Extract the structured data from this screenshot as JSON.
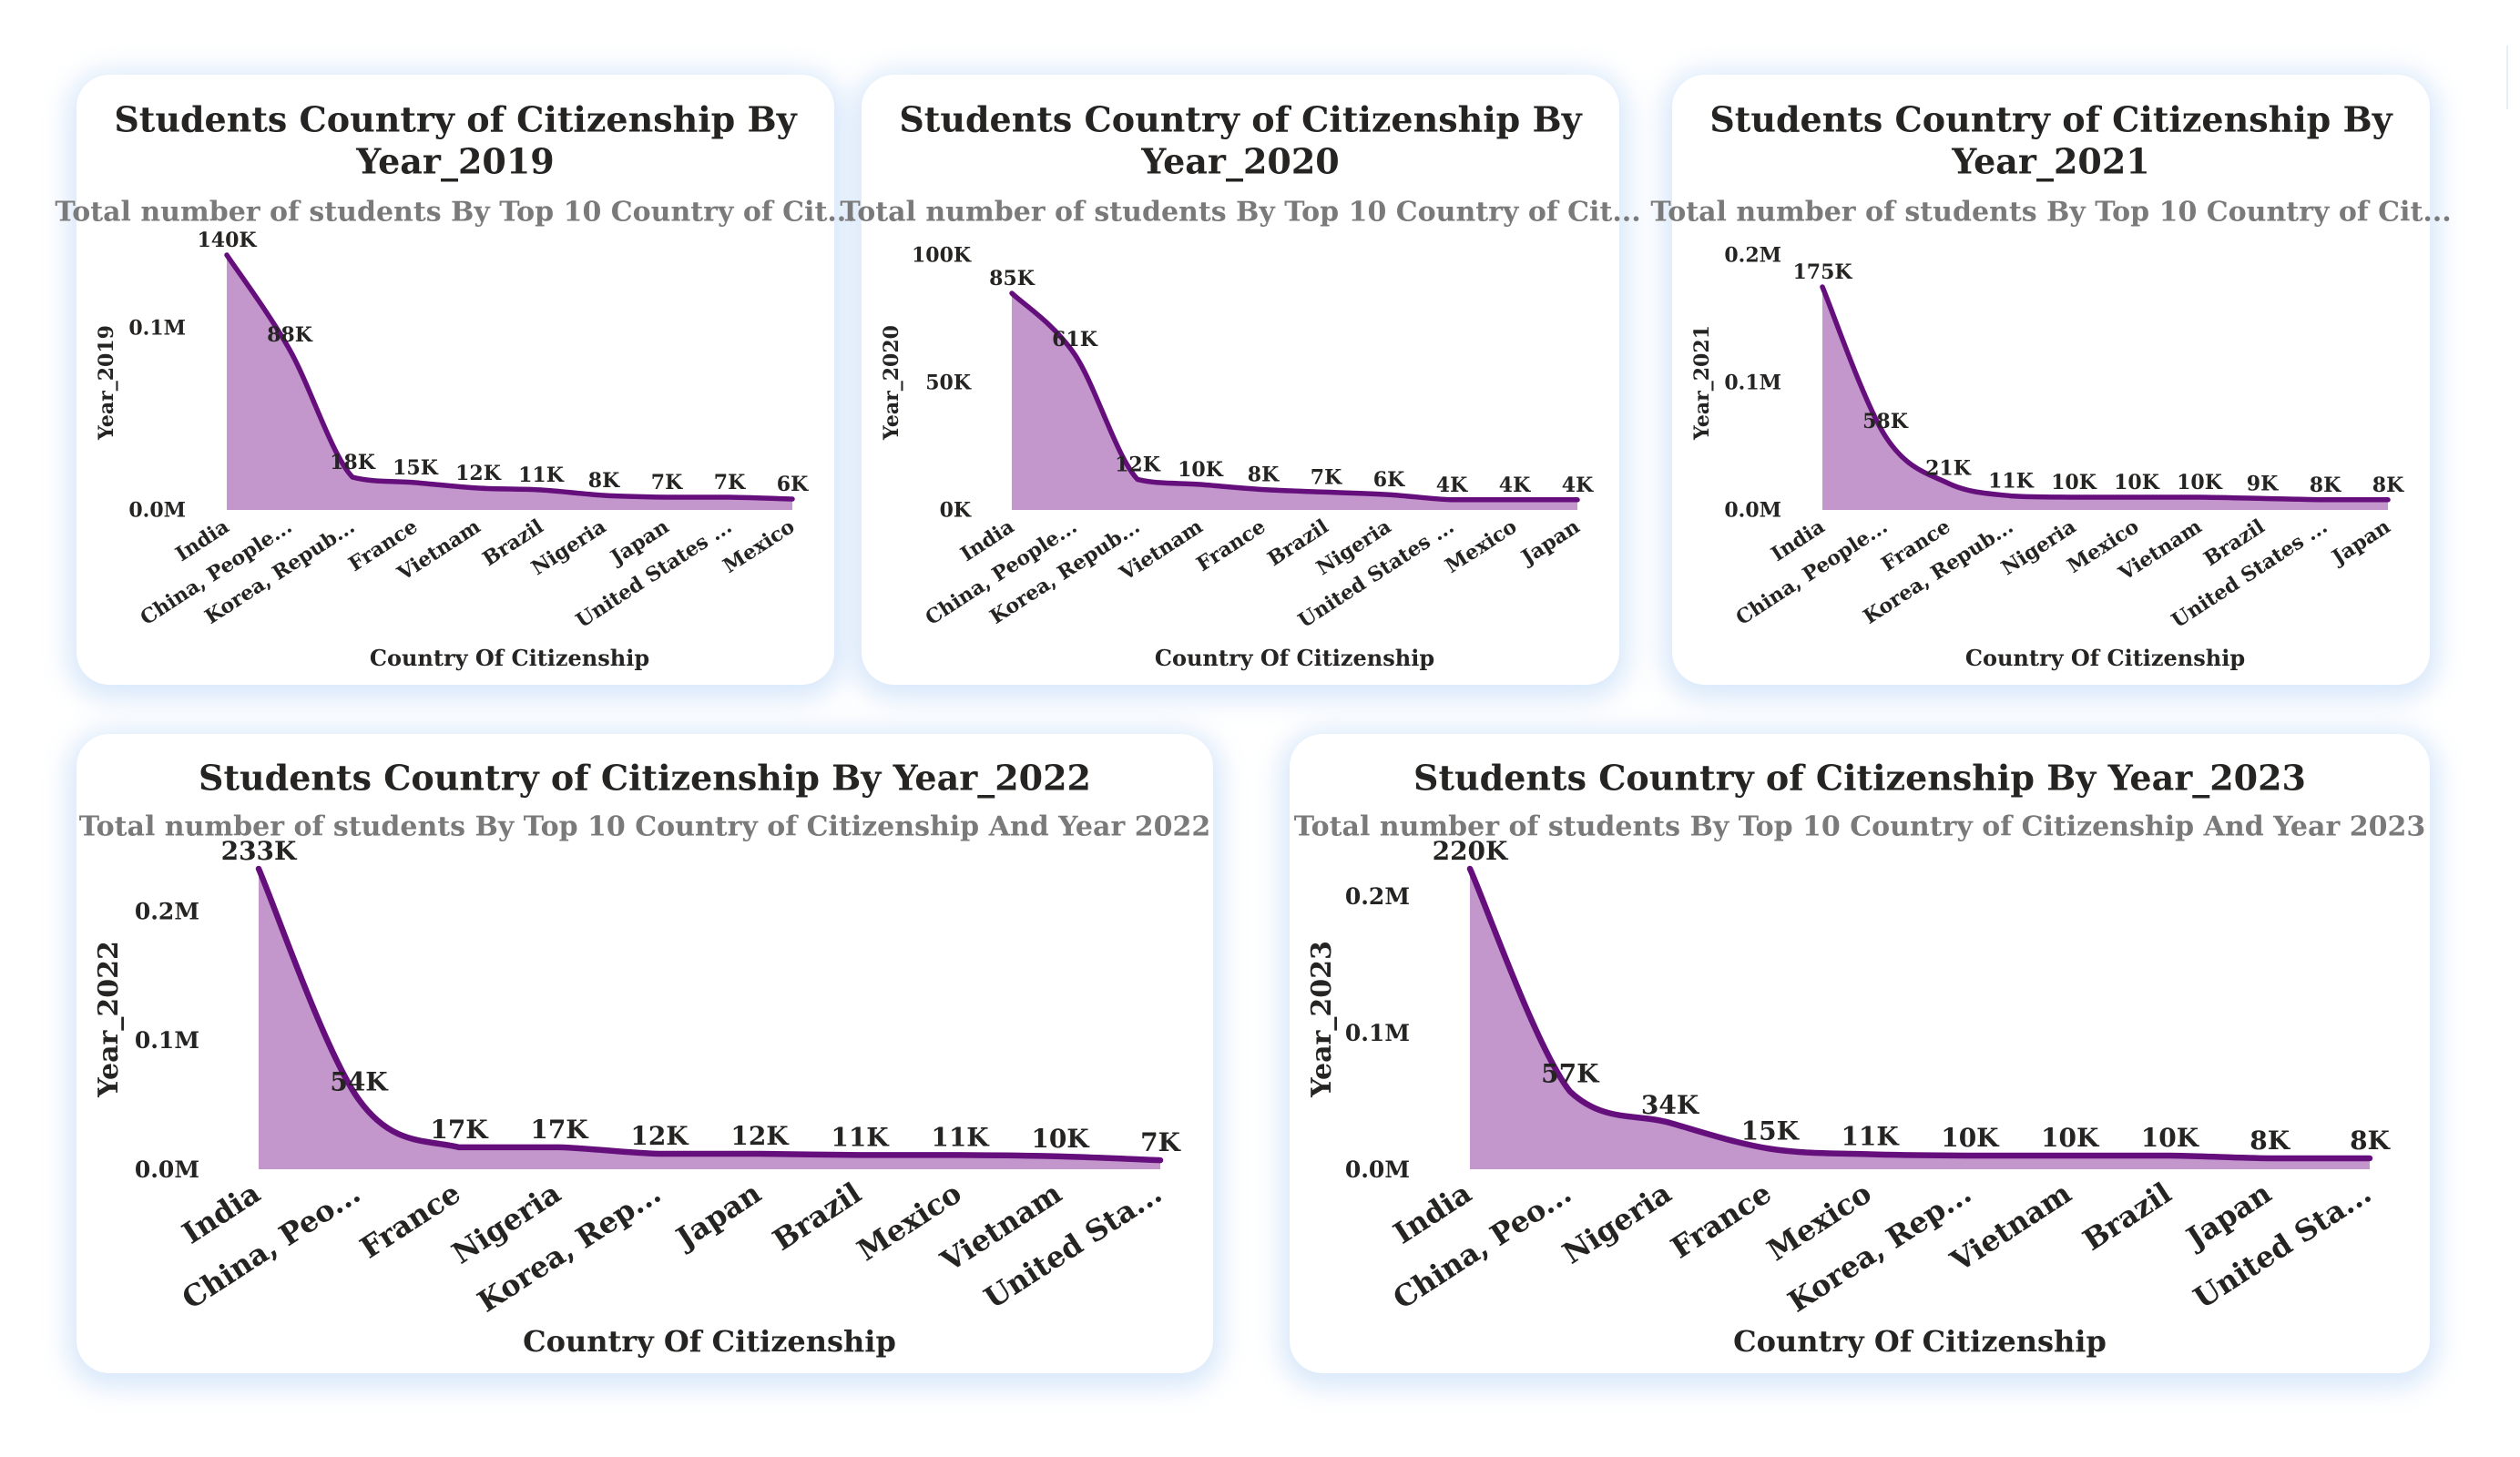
{
  "style": {
    "fill_color": "#c397cb",
    "line_color": "#650f7d",
    "card_shadow": "#aacdf5"
  },
  "chart_data": [
    {
      "type": "area",
      "title_lines": [
        "Students Country of Citizenship By",
        "Year_2019"
      ],
      "subtitle": "Total number of students By Top 10 Country of Cit...",
      "xlabel": "Country Of Citizenship",
      "ylabel": "Year_2019",
      "categories": [
        "India",
        "China, People...",
        "Korea, Repub...",
        "France",
        "Vietnam",
        "Brazil",
        "Nigeria",
        "Japan",
        "United States ...",
        "Mexico"
      ],
      "values": [
        140000,
        88000,
        18000,
        15000,
        12000,
        11000,
        8000,
        7000,
        7000,
        6000
      ],
      "data_labels": [
        "140K",
        "88K",
        "18K",
        "15K",
        "12K",
        "11K",
        "8K",
        "7K",
        "7K",
        "6K"
      ],
      "ylim": [
        0,
        140000
      ],
      "yticks": [
        {
          "value": 0,
          "label": "0.0M"
        },
        {
          "value": 100000,
          "label": "0.1M"
        }
      ]
    },
    {
      "type": "area",
      "title_lines": [
        "Students Country of Citizenship By",
        "Year_2020"
      ],
      "subtitle": "Total number of students By Top 10 Country of Cit...",
      "xlabel": "Country Of Citizenship",
      "ylabel": "Year_2020",
      "categories": [
        "India",
        "China, People...",
        "Korea, Repub...",
        "Vietnam",
        "France",
        "Brazil",
        "Nigeria",
        "United States ...",
        "Mexico",
        "Japan"
      ],
      "values": [
        85000,
        61000,
        12000,
        10000,
        8000,
        7000,
        6000,
        4000,
        4000,
        4000
      ],
      "data_labels": [
        "85K",
        "61K",
        "12K",
        "10K",
        "8K",
        "7K",
        "6K",
        "4K",
        "4K",
        "4K"
      ],
      "ylim": [
        0,
        100000
      ],
      "yticks": [
        {
          "value": 0,
          "label": "0K"
        },
        {
          "value": 50000,
          "label": "50K"
        },
        {
          "value": 100000,
          "label": "100K"
        }
      ]
    },
    {
      "type": "area",
      "title_lines": [
        "Students Country of Citizenship By",
        "Year_2021"
      ],
      "subtitle": "Total number of students By Top 10 Country of Cit...",
      "xlabel": "Country Of Citizenship",
      "ylabel": "Year_2021",
      "categories": [
        "India",
        "China, People...",
        "France",
        "Korea, Repub...",
        "Nigeria",
        "Mexico",
        "Vietnam",
        "Brazil",
        "United States ...",
        "Japan"
      ],
      "values": [
        175000,
        58000,
        21000,
        11000,
        10000,
        10000,
        10000,
        9000,
        8000,
        8000
      ],
      "data_labels": [
        "175K",
        "58K",
        "21K",
        "11K",
        "10K",
        "10K",
        "10K",
        "9K",
        "8K",
        "8K"
      ],
      "ylim": [
        0,
        200000
      ],
      "yticks": [
        {
          "value": 0,
          "label": "0.0M"
        },
        {
          "value": 100000,
          "label": "0.1M"
        },
        {
          "value": 200000,
          "label": "0.2M"
        }
      ]
    },
    {
      "type": "area",
      "title_lines": [
        "Students Country of Citizenship By Year_2022"
      ],
      "subtitle": "Total number of students By Top 10 Country of Citizenship And Year 2022",
      "xlabel": "Country Of Citizenship",
      "ylabel": "Year_2022",
      "categories": [
        "India",
        "China, Peo...",
        "France",
        "Nigeria",
        "Korea, Rep...",
        "Japan",
        "Brazil",
        "Mexico",
        "Vietnam",
        "United Sta..."
      ],
      "values": [
        233000,
        54000,
        17000,
        17000,
        12000,
        12000,
        11000,
        11000,
        10000,
        7000
      ],
      "data_labels": [
        "233K",
        "54K",
        "17K",
        "17K",
        "12K",
        "12K",
        "11K",
        "11K",
        "10K",
        "7K"
      ],
      "ylim": [
        0,
        233000
      ],
      "yticks": [
        {
          "value": 0,
          "label": "0.0M"
        },
        {
          "value": 100000,
          "label": "0.1M"
        },
        {
          "value": 200000,
          "label": "0.2M"
        }
      ]
    },
    {
      "type": "area",
      "title_lines": [
        "Students Country of Citizenship By Year_2023"
      ],
      "subtitle": "Total number of students By Top 10 Country of Citizenship And Year 2023",
      "xlabel": "Country Of Citizenship",
      "ylabel": "Year_2023",
      "categories": [
        "India",
        "China, Peo...",
        "Nigeria",
        "France",
        "Mexico",
        "Korea, Rep...",
        "Vietnam",
        "Brazil",
        "Japan",
        "United Sta..."
      ],
      "values": [
        220000,
        57000,
        34000,
        15000,
        11000,
        10000,
        10000,
        10000,
        8000,
        8000
      ],
      "data_labels": [
        "220K",
        "57K",
        "34K",
        "15K",
        "11K",
        "10K",
        "10K",
        "10K",
        "8K",
        "8K"
      ],
      "ylim": [
        0,
        220000
      ],
      "yticks": [
        {
          "value": 0,
          "label": "0.0M"
        },
        {
          "value": 100000,
          "label": "0.1M"
        },
        {
          "value": 200000,
          "label": "0.2M"
        }
      ]
    }
  ]
}
